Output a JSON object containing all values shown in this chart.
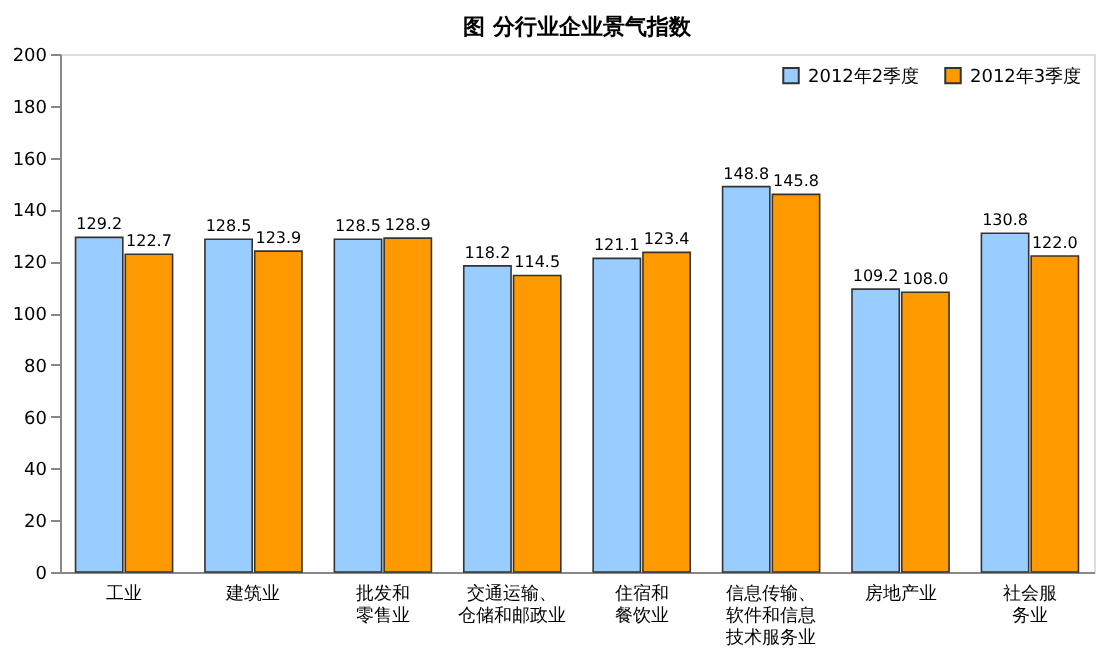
{
  "chart_data": {
    "type": "bar",
    "title": "图    分行业企业景气指数",
    "categories": [
      "工业",
      "建筑业",
      "批发和零售业",
      "交通运输、仓储和邮政业",
      "住宿和餐饮业",
      "信息传输、软件和信息技术服务业",
      "房地产业",
      "社会服务业"
    ],
    "series": [
      {
        "name": "2012年2季度",
        "color": "#99ccff",
        "values": [
          129.2,
          128.5,
          128.5,
          118.2,
          121.1,
          148.8,
          109.2,
          130.8
        ],
        "value_labels": [
          "129.2",
          "128.5",
          "128.5",
          "118.2",
          "121.1",
          "148.8",
          "109.2",
          "130.8"
        ]
      },
      {
        "name": "2012年3季度",
        "color": "#ff9900",
        "values": [
          122.7,
          123.9,
          128.9,
          114.5,
          123.4,
          145.8,
          108.0,
          122.0
        ],
        "value_labels": [
          "122.7",
          "123.9",
          "128.9",
          "114.5",
          "123.4",
          "145.8",
          "108.0",
          "122.0"
        ]
      }
    ],
    "ylim": [
      0,
      200
    ],
    "yticks": [
      0,
      20,
      40,
      60,
      80,
      100,
      120,
      140,
      160,
      180,
      200
    ],
    "legend": "top right",
    "grid": false
  }
}
